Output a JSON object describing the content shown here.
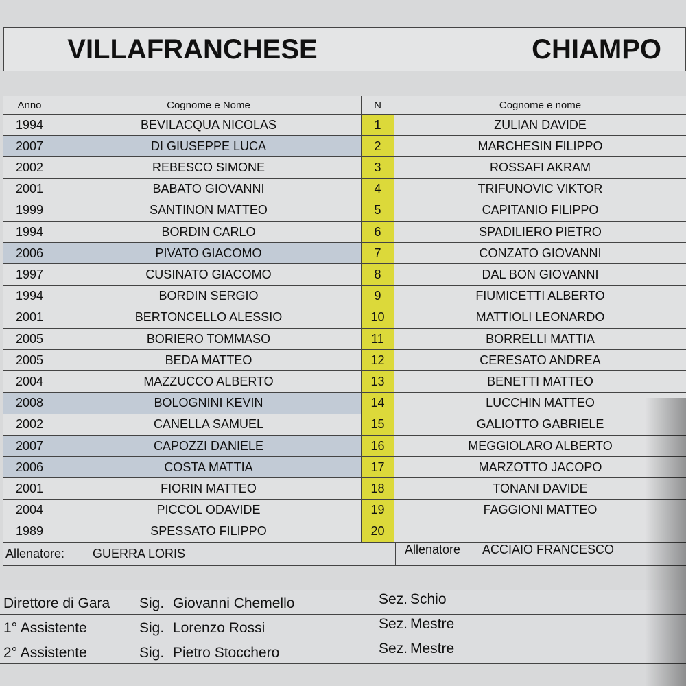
{
  "home_team": "VILLAFRANCHESE",
  "away_team": "CHIAMPO",
  "headers": {
    "anno": "Anno",
    "name": "Cognome e Nome",
    "n": "N",
    "away_name": "Cognome e nome"
  },
  "home_players": [
    {
      "anno": "1994",
      "name": "BEVILACQUA NICOLAS",
      "n": "1",
      "highlight": false
    },
    {
      "anno": "2007",
      "name": "DI GIUSEPPE LUCA",
      "n": "2",
      "highlight": true
    },
    {
      "anno": "2002",
      "name": "REBESCO SIMONE",
      "n": "3",
      "highlight": false
    },
    {
      "anno": "2001",
      "name": "BABATO GIOVANNI",
      "n": "4",
      "highlight": false
    },
    {
      "anno": "1999",
      "name": "SANTINON MATTEO",
      "n": "5",
      "highlight": false
    },
    {
      "anno": "1994",
      "name": "BORDIN CARLO",
      "n": "6",
      "highlight": false
    },
    {
      "anno": "2006",
      "name": "PIVATO GIACOMO",
      "n": "7",
      "highlight": true
    },
    {
      "anno": "1997",
      "name": "CUSINATO GIACOMO",
      "n": "8",
      "highlight": false
    },
    {
      "anno": "1994",
      "name": "BORDIN SERGIO",
      "n": "9",
      "highlight": false
    },
    {
      "anno": "2001",
      "name": "BERTONCELLO ALESSIO",
      "n": "10",
      "highlight": false
    },
    {
      "anno": "2005",
      "name": "BORIERO TOMMASO",
      "n": "11",
      "highlight": false
    },
    {
      "anno": "2005",
      "name": "BEDA MATTEO",
      "n": "12",
      "highlight": false
    },
    {
      "anno": "2004",
      "name": "MAZZUCCO ALBERTO",
      "n": "13",
      "highlight": false
    },
    {
      "anno": "2008",
      "name": "BOLOGNINI KEVIN",
      "n": "14",
      "highlight": true
    },
    {
      "anno": "2002",
      "name": "CANELLA SAMUEL",
      "n": "15",
      "highlight": false
    },
    {
      "anno": "2007",
      "name": "CAPOZZI DANIELE",
      "n": "16",
      "highlight": true
    },
    {
      "anno": "2006",
      "name": "COSTA MATTIA",
      "n": "17",
      "highlight": true
    },
    {
      "anno": "2001",
      "name": "FIORIN MATTEO",
      "n": "18",
      "highlight": false
    },
    {
      "anno": "2004",
      "name": "PICCOL ODAVIDE",
      "n": "19",
      "highlight": false
    },
    {
      "anno": "1989",
      "name": "SPESSATO FILIPPO",
      "n": "20",
      "highlight": false
    }
  ],
  "away_players": [
    "ZULIAN DAVIDE",
    "MARCHESIN FILIPPO",
    "ROSSAFI AKRAM",
    "TRIFUNOVIC VIKTOR",
    "CAPITANIO FILIPPO",
    "SPADILIERO PIETRO",
    "CONZATO GIOVANNI",
    "DAL BON GIOVANNI",
    "FIUMICETTI ALBERTO",
    "MATTIOLI LEONARDO",
    "BORRELLI MATTIA",
    "CERESATO ANDREA",
    "BENETTI MATTEO",
    "LUCCHIN MATTEO",
    "GALIOTTO GABRIELE",
    "MEGGIOLARO ALBERTO",
    "MARZOTTO JACOPO",
    "TONANI DAVIDE",
    "FAGGIONI MATTEO",
    ""
  ],
  "home_coach": {
    "label": "Allenatore:",
    "name": "GUERRA LORIS"
  },
  "away_coach": {
    "label": "Allenatore",
    "name": "ACCIAIO FRANCESCO"
  },
  "officials": [
    {
      "role": "Direttore di Gara",
      "title": "Sig.",
      "name": "Giovanni Chemello",
      "sez": "Sez.",
      "city": "Schio"
    },
    {
      "role": "1° Assistente",
      "title": "Sig.",
      "name": "Lorenzo Rossi",
      "sez": "Sez.",
      "city": "Mestre"
    },
    {
      "role": "2° Assistente",
      "title": "Sig.",
      "name": "Pietro Stocchero",
      "sez": "Sez.",
      "city": "Mestre"
    }
  ],
  "colors": {
    "number_bg": "#dcd93a",
    "highlight_row": "#c2cbd6"
  }
}
